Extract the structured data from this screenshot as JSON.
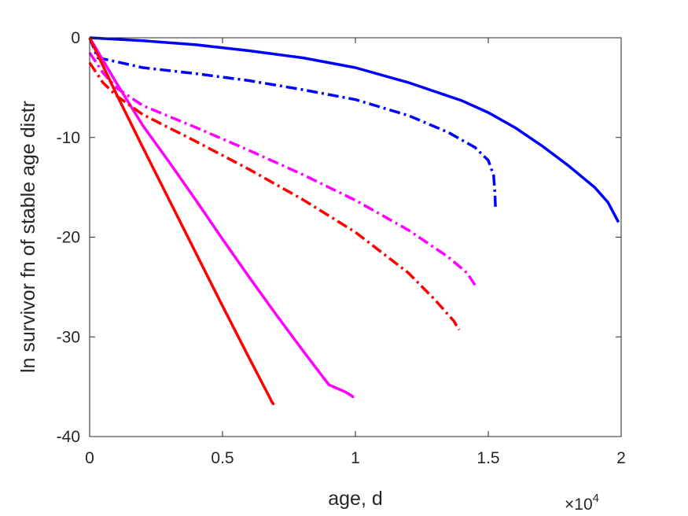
{
  "chart_data": {
    "type": "line",
    "title": "",
    "xlabel": "age, d",
    "ylabel": "ln survivor fn of stable age distr",
    "x_exponent_label": {
      "base": "×10",
      "exp": "4"
    },
    "xlim": [
      0,
      20000
    ],
    "ylim": [
      -40,
      0
    ],
    "xticks": [
      0,
      5000,
      10000,
      15000,
      20000
    ],
    "xtick_labels": [
      "0",
      "0.5",
      "1",
      "1.5",
      "2"
    ],
    "yticks": [
      0,
      -10,
      -20,
      -30,
      -40
    ],
    "ytick_labels": [
      "0",
      "-10",
      "-20",
      "-30",
      "-40"
    ],
    "grid": false,
    "legend": "none",
    "series": [
      {
        "color": "#0000ff",
        "dash": "solid",
        "x": [
          0,
          2000,
          4000,
          6000,
          8000,
          10000,
          12000,
          14000,
          15000,
          16000,
          17000,
          18000,
          19000,
          19500,
          19900
        ],
        "y": [
          0,
          -0.3,
          -0.7,
          -1.3,
          -2.0,
          -3.0,
          -4.5,
          -6.3,
          -7.5,
          -9.0,
          -10.8,
          -12.8,
          -15.0,
          -16.5,
          -18.5
        ]
      },
      {
        "color": "#0000ff",
        "dash": "dashdot",
        "x": [
          0,
          300,
          1000,
          2000,
          4000,
          6000,
          8000,
          10000,
          12000,
          13500,
          14500,
          15000,
          15200,
          15250,
          15270
        ],
        "y": [
          0,
          -2.0,
          -2.4,
          -3.0,
          -3.6,
          -4.3,
          -5.2,
          -6.2,
          -7.8,
          -9.5,
          -11.0,
          -12.3,
          -13.8,
          -15.5,
          -17.0
        ]
      },
      {
        "color": "#ff00ff",
        "dash": "solid",
        "x": [
          0,
          1000,
          2000,
          3000,
          4000,
          5000,
          6000,
          7000,
          8000,
          9000,
          9600,
          9800,
          9900,
          9950
        ],
        "y": [
          0,
          -4.5,
          -8.8,
          -12.5,
          -16.3,
          -20.2,
          -24.0,
          -27.7,
          -31.3,
          -34.8,
          -35.5,
          -35.8,
          -36.0,
          -36.0
        ]
      },
      {
        "color": "#ff00ff",
        "dash": "dashdot",
        "x": [
          0,
          500,
          1000,
          2000,
          4000,
          6000,
          8000,
          10000,
          12000,
          13500,
          14200,
          14500
        ],
        "y": [
          -1.5,
          -3.5,
          -5.0,
          -6.8,
          -9.0,
          -11.3,
          -13.7,
          -16.3,
          -19.3,
          -22.0,
          -23.6,
          -24.8
        ]
      },
      {
        "color": "#ff0000",
        "dash": "solid",
        "x": [
          0,
          1000,
          2000,
          3000,
          4000,
          5000,
          6000,
          6700,
          6800,
          6850,
          6900,
          6950
        ],
        "y": [
          0,
          -5.6,
          -11.0,
          -16.3,
          -21.6,
          -26.9,
          -32.1,
          -35.7,
          -36.2,
          -36.5,
          -36.7,
          -36.7
        ]
      },
      {
        "color": "#ff0000",
        "dash": "dashdot",
        "x": [
          0,
          500,
          1000,
          2000,
          4000,
          6000,
          8000,
          10000,
          12000,
          13000,
          13700,
          13900
        ],
        "y": [
          -2.5,
          -4.5,
          -5.8,
          -7.7,
          -10.4,
          -13.2,
          -16.2,
          -19.5,
          -23.6,
          -26.3,
          -28.4,
          -29.3
        ]
      }
    ]
  }
}
